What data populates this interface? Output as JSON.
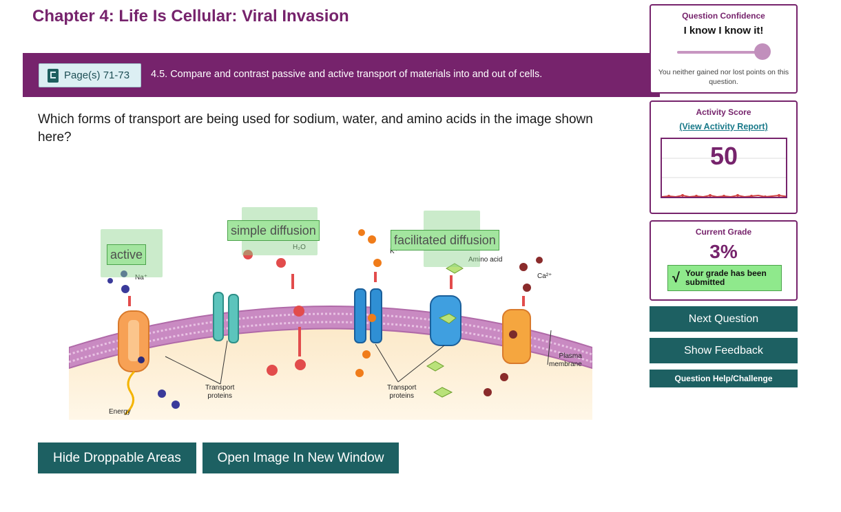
{
  "chapter_title": "Chapter 4: Life Is Cellular: Viral Invasion",
  "objective": {
    "page_button": "Page(s) 71-73",
    "text": "4.5. Compare and contrast passive and active transport of materials into and out of cells."
  },
  "question": "Which forms of transport are being used for sodium, water, and amino acids in the image shown here?",
  "figure": {
    "drop_labels": [
      "active",
      "simple diffusion",
      "facilitated diffusion"
    ],
    "labels": {
      "na": "Na⁺",
      "h2o": "H₂O",
      "k": "K⁺",
      "amino": "Amino acid",
      "ca": "Ca²⁺",
      "transport1": "Transport",
      "proteins1": "proteins",
      "transport2": "Transport",
      "proteins2": "proteins",
      "plasma": "Plasma",
      "membrane": "membrane",
      "energy": "Energy"
    }
  },
  "buttons": {
    "hide_areas": "Hide Droppable Areas",
    "open_image": "Open Image In New Window"
  },
  "confidence": {
    "title": "Question Confidence",
    "value": "I know I know it!",
    "note": "You neither gained nor lost points on this question."
  },
  "activity": {
    "title": "Activity Score",
    "link": "(View Activity Report)",
    "score": "50"
  },
  "grade": {
    "title": "Current Grade",
    "value": "3%",
    "submitted": "Your grade has been submitted"
  },
  "actions": {
    "next": "Next Question",
    "feedback": "Show Feedback",
    "help": "Question Help/Challenge"
  },
  "colors": {
    "brand": "#76236c",
    "teal": "#1d6062",
    "success": "#8fe98c"
  }
}
